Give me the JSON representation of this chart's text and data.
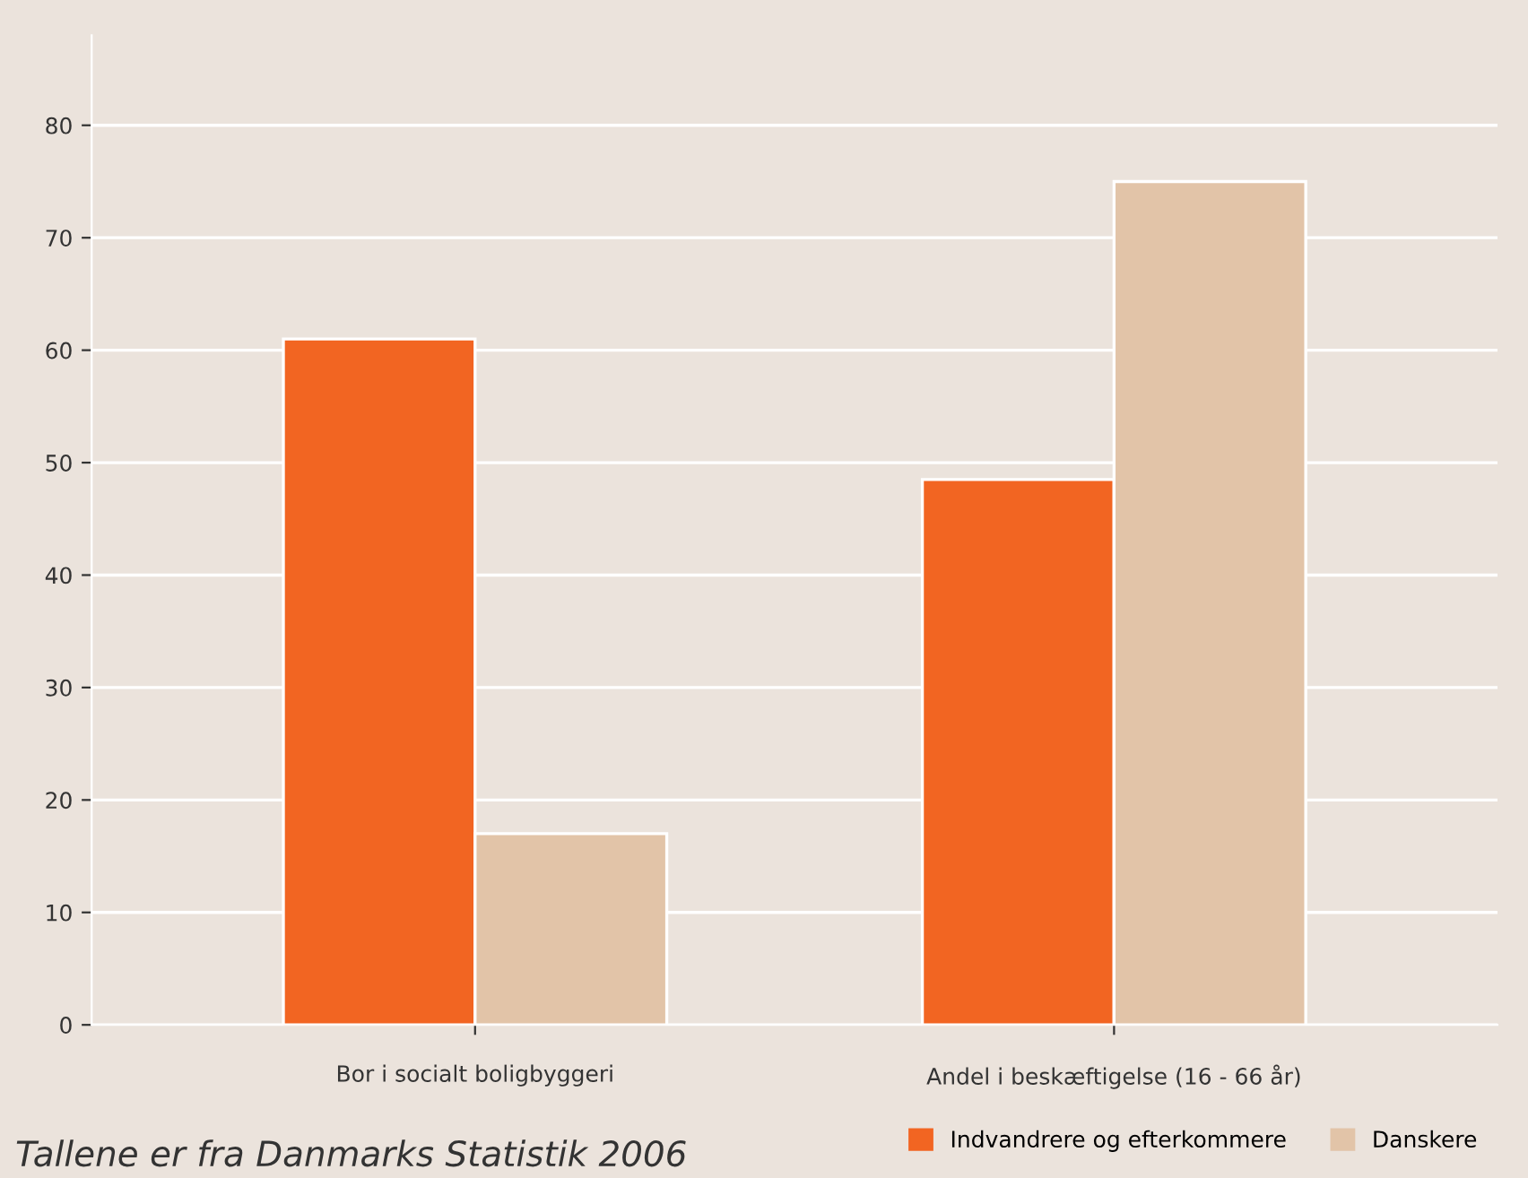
{
  "chart_data": {
    "type": "bar",
    "categories": [
      "Bor i socialt boligbyggeri",
      "Andel i beskæftigelse (16 - 66 år)"
    ],
    "series": [
      {
        "name": "Indvandrere og efterkommere",
        "color": "#f26522",
        "values": [
          61,
          48.5
        ]
      },
      {
        "name": "Danskere",
        "color": "#e2c4a8",
        "values": [
          17,
          75
        ]
      }
    ],
    "ylim": [
      0,
      88
    ],
    "yticks": [
      0,
      10,
      20,
      30,
      40,
      50,
      60,
      70,
      80
    ],
    "grid": "y",
    "legend": "bottom right",
    "annotations": [
      "Tallene er fra Danmarks Statistik 2006"
    ]
  }
}
